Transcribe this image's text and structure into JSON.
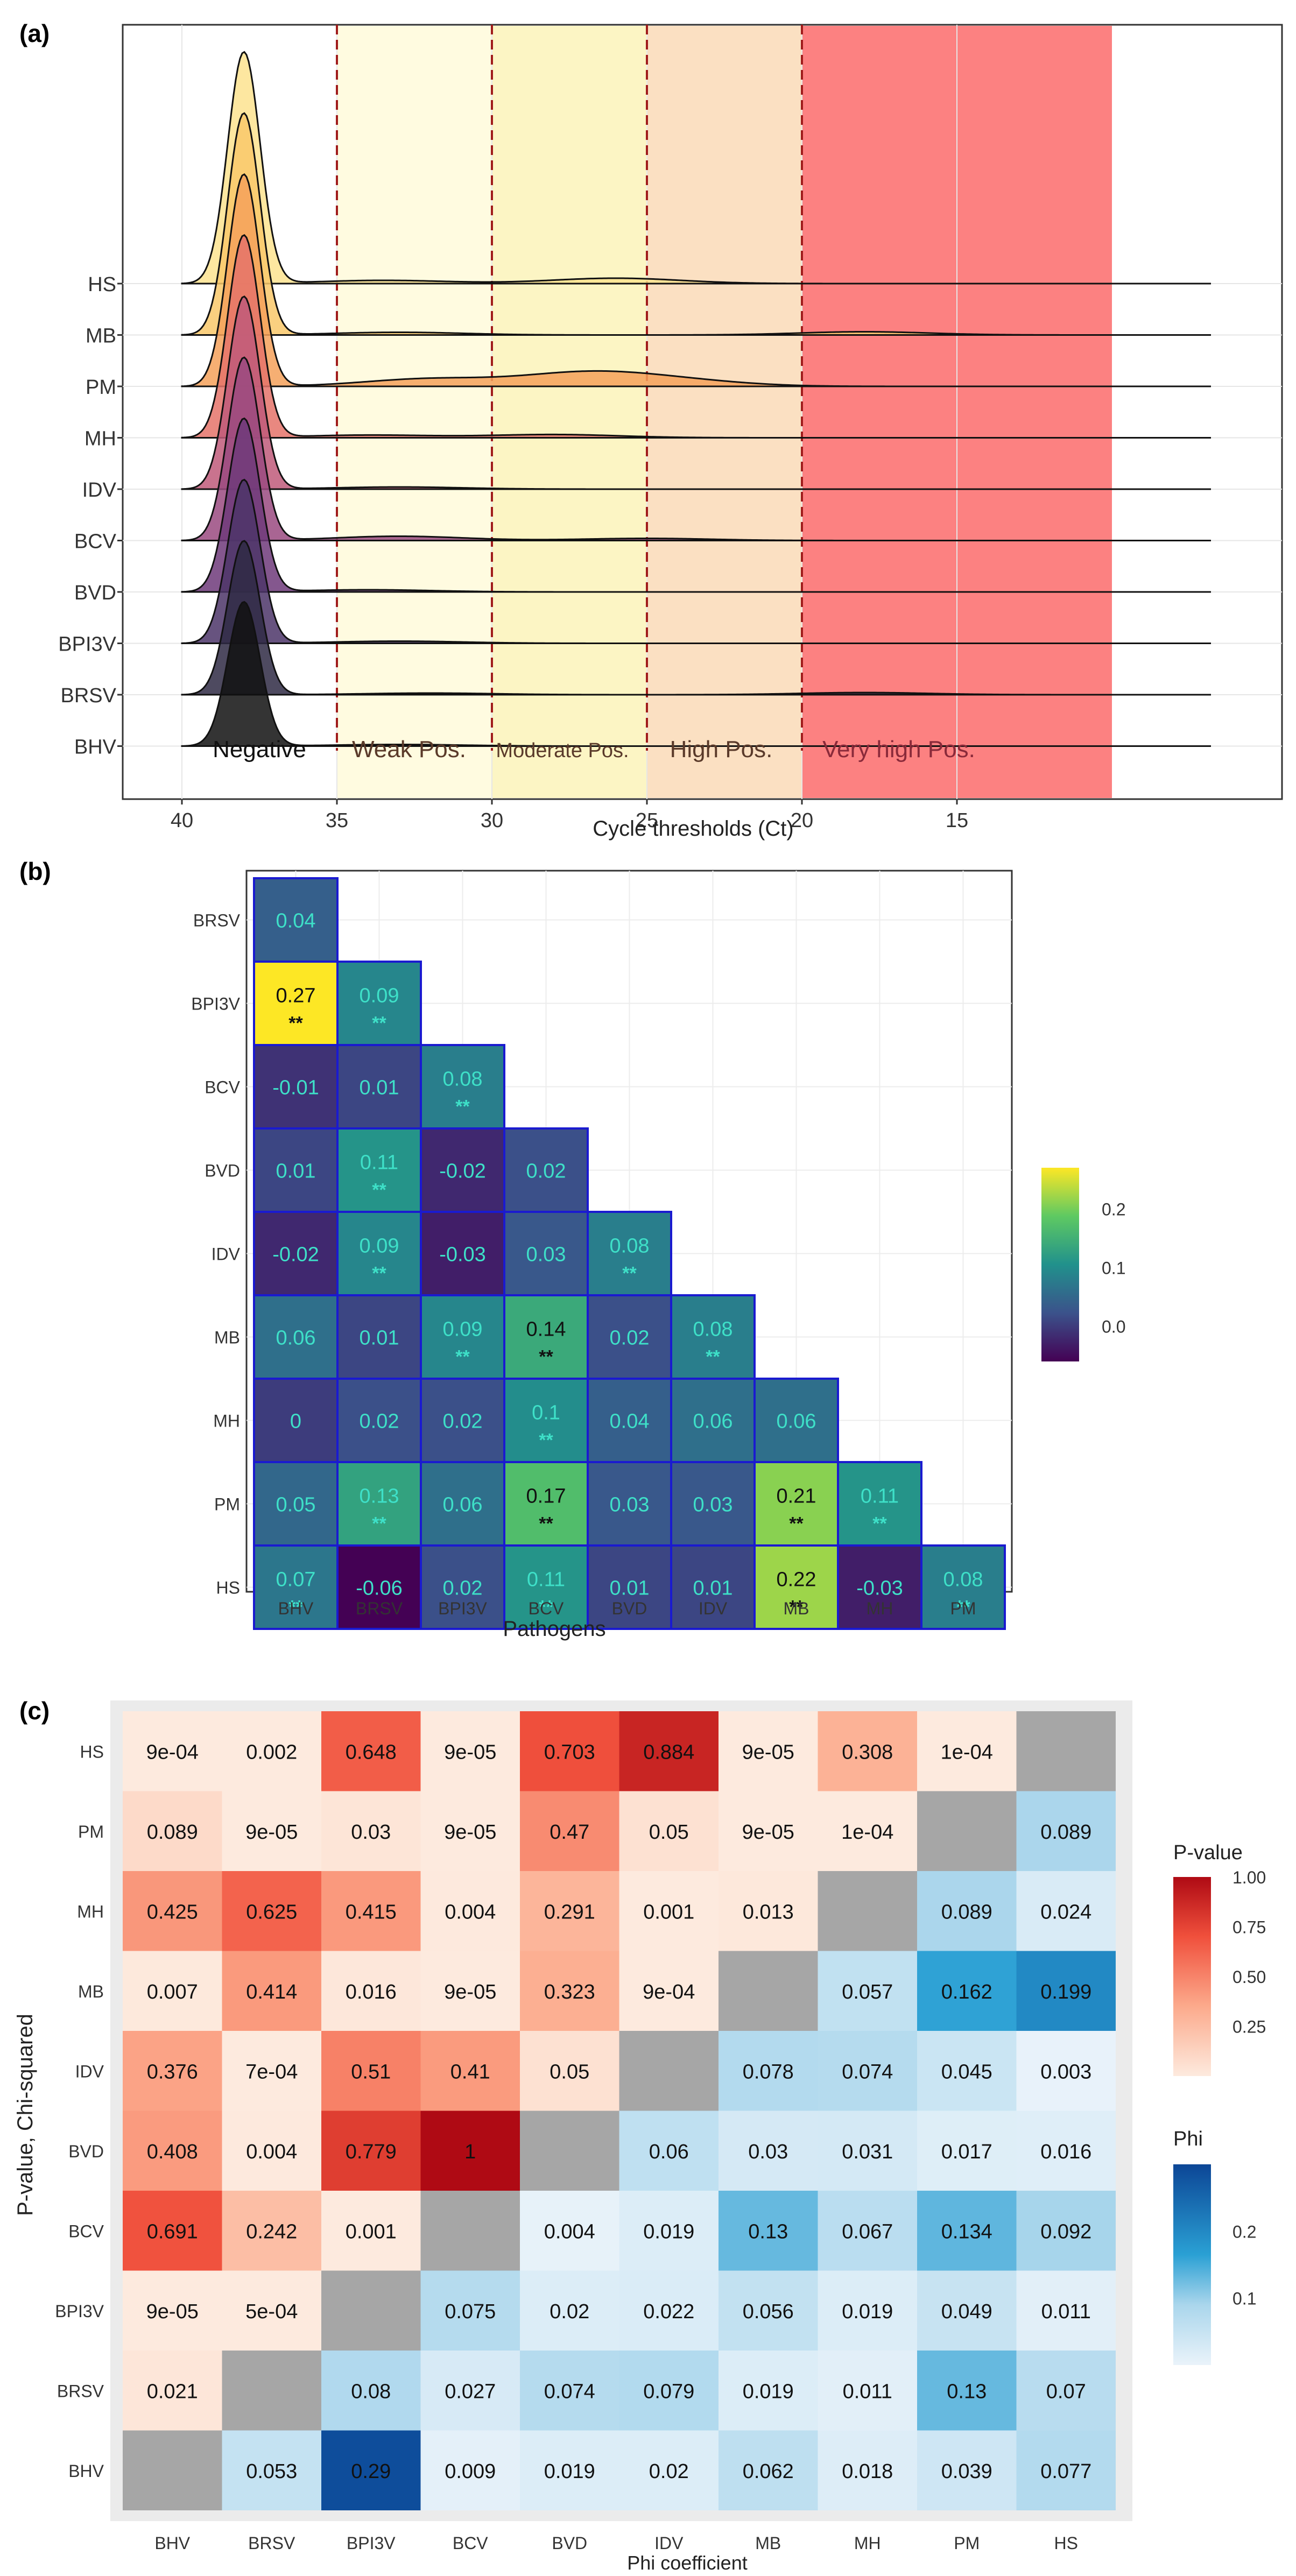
{
  "panel_a": {
    "label": "(a)",
    "xlabel": "Cycle thresholds (Ct)",
    "x_ticks": [
      40,
      35,
      30,
      25,
      20,
      15
    ],
    "rows": [
      "HS",
      "MB",
      "PM",
      "MH",
      "IDV",
      "BCV",
      "BVD",
      "BPI3V",
      "BRSV",
      "BHV"
    ],
    "zones": [
      {
        "label": "Negative",
        "from": 40,
        "to": 35,
        "color": "#ffffff"
      },
      {
        "label": "Weak Pos.",
        "from": 35,
        "to": 30,
        "color": "#fffbe0"
      },
      {
        "label": "Moderate Pos.",
        "from": 30,
        "to": 25,
        "color": "#fcf5c4"
      },
      {
        "label": "High Pos.",
        "from": 25,
        "to": 20,
        "color": "#fbe0c2"
      },
      {
        "label": "Very high Pos.",
        "from": 20,
        "to": 10,
        "color": "#fc8181"
      }
    ]
  },
  "panel_b": {
    "label": "(b)",
    "xlabel": "Pathogens",
    "rows": [
      "BRSV",
      "BPI3V",
      "BCV",
      "BVD",
      "IDV",
      "MB",
      "MH",
      "PM",
      "HS"
    ],
    "cols": [
      "BHV",
      "BRSV",
      "BPI3V",
      "BCV",
      "BVD",
      "IDV",
      "MB",
      "MH",
      "PM"
    ],
    "legend_ticks": [
      "0.2",
      "0.1",
      "0.0"
    ]
  },
  "panel_c": {
    "label": "(c)",
    "ylabel": "P-value, Chi-squared",
    "xlabel": "Phi coefficient",
    "rows": [
      "HS",
      "PM",
      "MH",
      "MB",
      "IDV",
      "BVD",
      "BCV",
      "BPI3V",
      "BRSV",
      "BHV"
    ],
    "cols": [
      "BHV",
      "BRSV",
      "BPI3V",
      "BCV",
      "BVD",
      "IDV",
      "MB",
      "MH",
      "PM",
      "HS"
    ],
    "legend_p_title": "P-value",
    "legend_p_ticks": [
      "1.00",
      "0.75",
      "0.50",
      "0.25"
    ],
    "legend_phi_title": "Phi",
    "legend_phi_ticks": [
      "0.2",
      "0.1"
    ]
  },
  "chart_data": [
    {
      "type": "area",
      "title": "",
      "xlabel": "Cycle thresholds (Ct)",
      "ylabel": "",
      "xlim": [
        40,
        10
      ],
      "categories": [
        "HS",
        "MB",
        "PM",
        "MH",
        "IDV",
        "BCV",
        "BVD",
        "BPI3V",
        "BRSV",
        "BHV"
      ],
      "series_colors": [
        "#fde38f",
        "#f9c86a",
        "#f5a15b",
        "#e5736a",
        "#c05a7a",
        "#9a4a80",
        "#6f3a7a",
        "#4c3569",
        "#2f2a44",
        "#111111"
      ],
      "peak_ct": 38,
      "thresholds": [
        35,
        30,
        25,
        20
      ]
    },
    {
      "type": "heatmap",
      "title": "",
      "xlabel": "Pathogens",
      "ylabel": "",
      "color_range": [
        -0.06,
        0.27
      ],
      "rows": [
        "BRSV",
        "BPI3V",
        "BCV",
        "BVD",
        "IDV",
        "MB",
        "MH",
        "PM",
        "HS"
      ],
      "cols": [
        "BHV",
        "BRSV",
        "BPI3V",
        "BCV",
        "BVD",
        "IDV",
        "MB",
        "MH",
        "PM"
      ],
      "values": [
        [
          "0.04"
        ],
        [
          "0.27",
          "0.09"
        ],
        [
          "-0.01",
          "0.01",
          "0.08"
        ],
        [
          "0.01",
          "0.11",
          "-0.02",
          "0.02"
        ],
        [
          "-0.02",
          "0.09",
          "-0.03",
          "0.03",
          "0.08"
        ],
        [
          "0.06",
          "0.01",
          "0.09",
          "0.14",
          "0.02",
          "0.08"
        ],
        [
          "0",
          "0.02",
          "0.02",
          "0.1",
          "0.04",
          "0.06",
          "0.06"
        ],
        [
          "0.05",
          "0.13",
          "0.06",
          "0.17",
          "0.03",
          "0.03",
          "0.21",
          "0.11"
        ],
        [
          "0.07",
          "-0.06",
          "0.02",
          "0.11",
          "0.01",
          "0.01",
          "0.22",
          "-0.03",
          "0.08"
        ]
      ],
      "significance": [
        [
          ""
        ],
        [
          "**",
          "**"
        ],
        [
          "",
          "",
          "**"
        ],
        [
          "",
          "**",
          "",
          ""
        ],
        [
          "",
          "**",
          "",
          "",
          "**"
        ],
        [
          "",
          "",
          "**",
          "**",
          "",
          "**"
        ],
        [
          "",
          "",
          "",
          "**",
          "",
          "",
          ""
        ],
        [
          "",
          "**",
          "",
          "**",
          "",
          "",
          "**",
          "**"
        ],
        [
          "**",
          "",
          "",
          "**",
          "",
          "",
          "**",
          "",
          "**"
        ]
      ]
    },
    {
      "type": "heatmap",
      "title": "",
      "xlabel": "Phi coefficient",
      "ylabel": "P-value, Chi-squared",
      "rows": [
        "HS",
        "PM",
        "MH",
        "MB",
        "IDV",
        "BVD",
        "BCV",
        "BPI3V",
        "BRSV",
        "BHV"
      ],
      "cols": [
        "BHV",
        "BRSV",
        "BPI3V",
        "BCV",
        "BVD",
        "IDV",
        "MB",
        "MH",
        "PM",
        "HS"
      ],
      "values": [
        [
          "9e-04",
          "0.002",
          "0.648",
          "9e-05",
          "0.703",
          "0.884",
          "9e-05",
          "0.308",
          "1e-04",
          ""
        ],
        [
          "0.089",
          "9e-05",
          "0.03",
          "9e-05",
          "0.47",
          "0.05",
          "9e-05",
          "1e-04",
          "",
          "0.089"
        ],
        [
          "0.425",
          "0.625",
          "0.415",
          "0.004",
          "0.291",
          "0.001",
          "0.013",
          "",
          "0.089",
          "0.024"
        ],
        [
          "0.007",
          "0.414",
          "0.016",
          "9e-05",
          "0.323",
          "9e-04",
          "",
          "0.057",
          "0.162",
          "0.199"
        ],
        [
          "0.376",
          "7e-04",
          "0.51",
          "0.41",
          "0.05",
          "",
          "0.078",
          "0.074",
          "0.045",
          "0.003"
        ],
        [
          "0.408",
          "0.004",
          "0.779",
          "1",
          "",
          "0.06",
          "0.03",
          "0.031",
          "0.017",
          "0.016"
        ],
        [
          "0.691",
          "0.242",
          "0.001",
          "",
          "0.004",
          "0.019",
          "0.13",
          "0.067",
          "0.134",
          "0.092"
        ],
        [
          "9e-05",
          "5e-04",
          "",
          "0.075",
          "0.02",
          "0.022",
          "0.056",
          "0.019",
          "0.049",
          "0.011"
        ],
        [
          "0.021",
          "",
          "0.08",
          "0.027",
          "0.074",
          "0.079",
          "0.019",
          "0.011",
          "0.13",
          "0.07"
        ],
        [
          "",
          "0.053",
          "0.29",
          "0.009",
          "0.019",
          "0.02",
          "0.062",
          "0.018",
          "0.039",
          "0.077"
        ]
      ],
      "p_value_range": [
        0,
        1
      ],
      "phi_range": [
        0,
        0.3
      ]
    }
  ]
}
